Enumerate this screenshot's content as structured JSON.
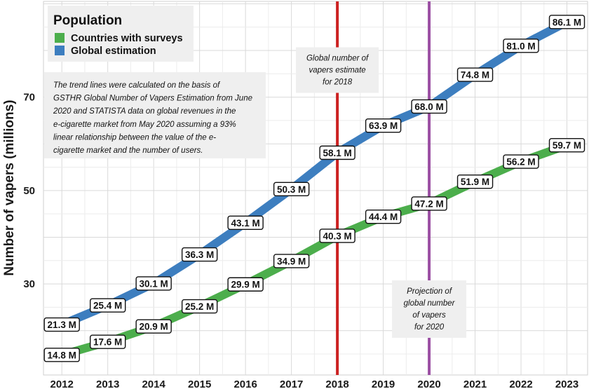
{
  "chart_data": {
    "type": "line",
    "ylabel": "Number of vapers (millions)",
    "xlabel": "",
    "x": [
      2012,
      2013,
      2014,
      2015,
      2016,
      2017,
      2018,
      2019,
      2020,
      2021,
      2022,
      2023
    ],
    "x_tick_labels": [
      "2012",
      "2013",
      "2014",
      "2015",
      "2016",
      "2017",
      "2018",
      "2019",
      "2020",
      "2021",
      "2022",
      "2023"
    ],
    "xlim": [
      2011.6,
      2023.45
    ],
    "ylim": [
      10.5,
      90.5
    ],
    "y_ticks": [
      30,
      50,
      70
    ],
    "y_tick_labels": [
      "30",
      "50",
      "70"
    ],
    "grid": true,
    "legend": {
      "title": "Population",
      "position": "top-left",
      "entries": [
        "Countries with surveys",
        "Global estimation"
      ]
    },
    "series": [
      {
        "name": "Global estimation",
        "color": "#3d7ebf",
        "values": [
          21.3,
          25.4,
          30.1,
          36.3,
          43.1,
          50.3,
          58.1,
          63.9,
          68.0,
          74.8,
          81.0,
          86.1
        ],
        "labels": [
          "21.3 M",
          "25.4 M",
          "30.1 M",
          "36.3 M",
          "43.1 M",
          "50.3 M",
          "58.1 M",
          "63.9 M",
          "68.0 M",
          "74.8 M",
          "81.0 M",
          "86.1 M"
        ]
      },
      {
        "name": "Countries with surveys",
        "color": "#4cae4c",
        "values": [
          14.8,
          17.6,
          20.9,
          25.2,
          29.9,
          34.9,
          40.3,
          44.4,
          47.2,
          51.9,
          56.2,
          59.7
        ],
        "labels": [
          "14.8 M",
          "17.6 M",
          "20.9 M",
          "25.2 M",
          "29.9 M",
          "34.9 M",
          "40.3 M",
          "44.4 M",
          "47.2 M",
          "51.9 M",
          "56.2 M",
          "59.7 M"
        ]
      }
    ],
    "vertical_markers": [
      {
        "x": 2018,
        "color": "#cc2222",
        "label_lines": [
          "Global number of",
          "vapers estimate",
          "for 2018"
        ]
      },
      {
        "x": 2020,
        "color": "#9b4fa3",
        "label_lines": [
          "Projection of",
          "global number",
          "of vapers",
          "for 2020"
        ]
      }
    ],
    "note_lines": [
      "The trend lines were calculated on the basis of",
      "GSTHR Global Number of Vapers Estimation from June",
      "2020 and STATISTA data on global revenues in the",
      "e-cigarette market from May 2020 assuming a 93%",
      "linear relationship between the value of the e-",
      "cigarette market and the number of users."
    ]
  }
}
